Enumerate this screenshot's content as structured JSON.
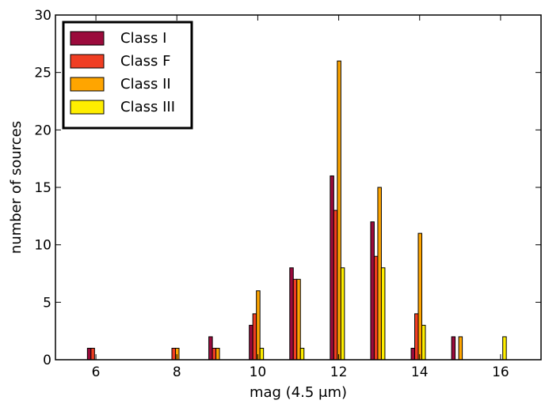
{
  "chart_data": {
    "type": "bar",
    "xlabel": "mag (4.5 μm)",
    "ylabel": "number of sources",
    "xlim": [
      5,
      17
    ],
    "ylim": [
      0,
      30
    ],
    "xticks": [
      6,
      8,
      10,
      12,
      14,
      16
    ],
    "yticks": [
      0,
      5,
      10,
      15,
      20,
      25,
      30
    ],
    "grid": false,
    "legend_position": "top-left",
    "bin_centers": [
      6,
      7,
      8,
      9,
      10,
      11,
      12,
      13,
      14,
      15,
      16
    ],
    "series": [
      {
        "name": "Class I",
        "color": "#9b0b3c",
        "values": [
          1,
          0,
          0,
          2,
          3,
          8,
          16,
          12,
          1,
          2,
          0
        ]
      },
      {
        "name": "Class F",
        "color": "#f03e23",
        "values": [
          1,
          0,
          1,
          1,
          4,
          7,
          13,
          9,
          4,
          0,
          0
        ]
      },
      {
        "name": "Class II",
        "color": "#ffa500",
        "values": [
          0,
          0,
          1,
          1,
          6,
          7,
          26,
          15,
          11,
          2,
          0
        ]
      },
      {
        "name": "Class III",
        "color": "#ffee00",
        "values": [
          0,
          0,
          0,
          0,
          1,
          1,
          8,
          8,
          3,
          0,
          2
        ]
      }
    ]
  }
}
